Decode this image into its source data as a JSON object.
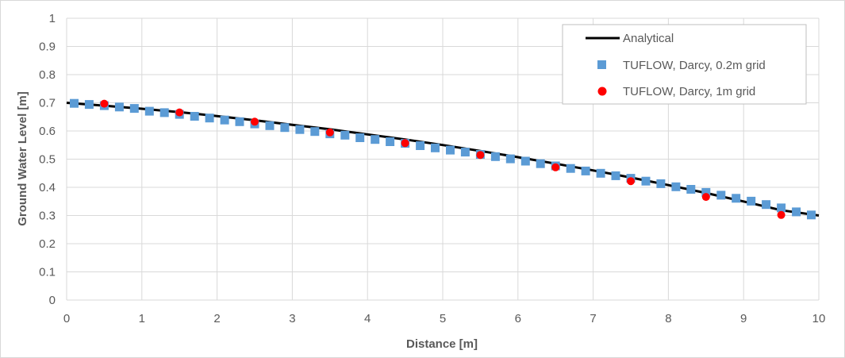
{
  "chart_data": {
    "type": "scatter",
    "xlabel": "Distance [m]",
    "ylabel": "Ground Water Level [m]",
    "xlim": [
      0,
      10
    ],
    "ylim": [
      0,
      1
    ],
    "x_ticks": [
      "0",
      "1",
      "2",
      "3",
      "4",
      "5",
      "6",
      "7",
      "8",
      "9",
      "10"
    ],
    "y_ticks": [
      "0",
      "0.1",
      "0.2",
      "0.3",
      "0.4",
      "0.5",
      "0.6",
      "0.7",
      "0.8",
      "0.9",
      "1"
    ],
    "grid": true,
    "legend_position": "top-right",
    "series": [
      {
        "name": "Analytical",
        "kind": "line",
        "color": "#000000",
        "x": [
          0,
          0.5,
          1,
          1.5,
          2,
          2.5,
          3,
          3.5,
          4,
          4.5,
          5,
          5.5,
          6,
          6.5,
          7,
          7.5,
          8,
          8.5,
          9,
          9.5,
          10
        ],
        "y": [
          0.7,
          0.69,
          0.679,
          0.667,
          0.653,
          0.638,
          0.622,
          0.606,
          0.588,
          0.57,
          0.55,
          0.529,
          0.507,
          0.484,
          0.46,
          0.435,
          0.408,
          0.38,
          0.35,
          0.319,
          0.3
        ]
      },
      {
        "name": "TUFLOW, Darcy, 0.2m grid",
        "kind": "square",
        "color": "#5b9bd5",
        "x": [
          0.1,
          0.3,
          0.5,
          0.7,
          0.9,
          1.1,
          1.3,
          1.5,
          1.7,
          1.9,
          2.1,
          2.3,
          2.5,
          2.7,
          2.9,
          3.1,
          3.3,
          3.5,
          3.7,
          3.9,
          4.1,
          4.3,
          4.5,
          4.7,
          4.9,
          5.1,
          5.3,
          5.5,
          5.7,
          5.9,
          6.1,
          6.3,
          6.5,
          6.7,
          6.9,
          7.1,
          7.3,
          7.5,
          7.7,
          7.9,
          8.1,
          8.3,
          8.5,
          8.7,
          8.9,
          9.1,
          9.3,
          9.5,
          9.7,
          9.9
        ],
        "y": [
          0.698,
          0.694,
          0.69,
          0.685,
          0.68,
          0.67,
          0.665,
          0.659,
          0.652,
          0.646,
          0.639,
          0.633,
          0.625,
          0.619,
          0.612,
          0.605,
          0.598,
          0.59,
          0.585,
          0.576,
          0.57,
          0.562,
          0.556,
          0.548,
          0.54,
          0.532,
          0.525,
          0.517,
          0.509,
          0.501,
          0.493,
          0.484,
          0.476,
          0.467,
          0.458,
          0.45,
          0.441,
          0.432,
          0.422,
          0.413,
          0.402,
          0.393,
          0.382,
          0.372,
          0.361,
          0.351,
          0.339,
          0.327,
          0.313,
          0.302
        ]
      },
      {
        "name": "TUFLOW, Darcy, 1m grid",
        "kind": "circle",
        "color": "#ff0000",
        "x": [
          0.5,
          1.5,
          2.5,
          3.5,
          4.5,
          5.5,
          6.5,
          7.5,
          8.5,
          9.5
        ],
        "y": [
          0.697,
          0.666,
          0.633,
          0.595,
          0.557,
          0.515,
          0.471,
          0.422,
          0.366,
          0.302
        ]
      }
    ]
  }
}
